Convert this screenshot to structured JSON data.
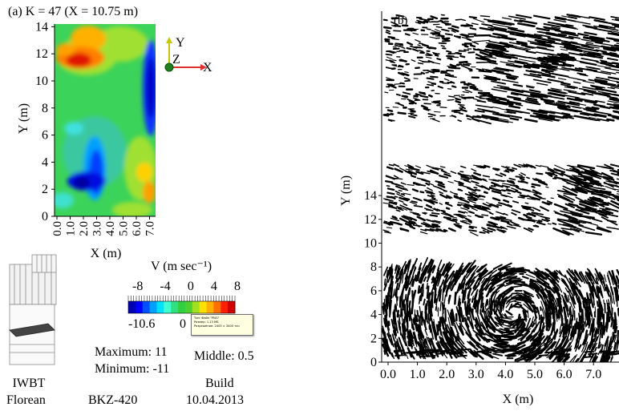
{
  "panel_a": {
    "title": "(a)  K = 47 (X = 10.75 m)",
    "ylabel": "Y (m)",
    "xlabel": "X (m)",
    "yticks": [
      "0",
      "2",
      "4",
      "6",
      "8",
      "10",
      "12",
      "14"
    ],
    "xticks": [
      "0.0",
      "1.0",
      "2.0",
      "3.0",
      "4.0",
      "5.0",
      "6.0",
      "7.0"
    ],
    "axes_labels": {
      "y": "Y",
      "z": "Z",
      "x": "X"
    }
  },
  "colorbar": {
    "title": "V (m sec⁻¹)",
    "ticks": [
      "-8",
      "-4",
      "0",
      "4",
      "8"
    ],
    "min_label": "-10.6",
    "zero_label": "0",
    "colors": [
      "#0000b4",
      "#0000ff",
      "#0050ff",
      "#00a0ff",
      "#00e0ff",
      "#40ffd0",
      "#30e080",
      "#30d040",
      "#50d030",
      "#a0e020",
      "#ffe000",
      "#ffb000",
      "#ff7000",
      "#ff2000",
      "#d00000"
    ]
  },
  "stats": {
    "maximum": "Maximum: 11",
    "minimum": "Minimum: -11",
    "middle": "Middle: 0.5"
  },
  "tooltip": {
    "line1": "Тип: Файл \"PNG\"",
    "line2": "Размер: 1,13 МБ",
    "line3": "Разрешение: 2405 × 3400 точ"
  },
  "footer": {
    "org1": "IWBT",
    "org2": "Florean",
    "model": "BKZ-420",
    "build_label": "Build",
    "build_date": "10.04.2013"
  },
  "panel_b": {
    "label": "(b)",
    "ylabel": "Y (m)",
    "xlabel": "X (m)",
    "yticks": [
      "0",
      "2",
      "4",
      "6",
      "8",
      "10",
      "12",
      "14"
    ],
    "xticks": [
      "0.0",
      "1.0",
      "2.0",
      "3.0",
      "4.0",
      "5.0",
      "6.0",
      "7.0"
    ]
  }
}
